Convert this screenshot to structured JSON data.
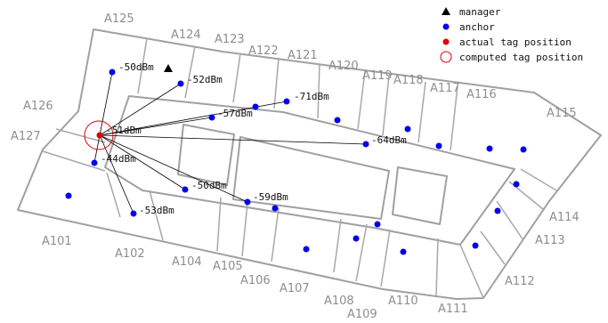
{
  "colors": {
    "anchor": "#0000ee",
    "tag": "#dd0000",
    "computed": "#dd0000",
    "manager": "#000000",
    "wall": "#a0a0a0",
    "room_label": "#8e8e8e"
  },
  "legend": {
    "manager": "manager",
    "anchor": "anchor",
    "actual": "actual tag position",
    "computed": "computed tag position"
  },
  "rooms": {
    "A101": "A101",
    "A102": "A102",
    "A104": "A104",
    "A105": "A105",
    "A106": "A106",
    "A107": "A107",
    "A108": "A108",
    "A109": "A109",
    "A110": "A110",
    "A111": "A111",
    "A112": "A112",
    "A113": "A113",
    "A114": "A114",
    "A115": "A115",
    "A116": "A116",
    "A117": "A117",
    "A118": "A118",
    "A119": "A119",
    "A120": "A120",
    "A121": "A121",
    "A122": "A122",
    "A123": "A123",
    "A124": "A124",
    "A125": "A125",
    "A126": "A126",
    "A127": "A127"
  },
  "rssi": {
    "r1": "-50dBm",
    "r2": "-52dBm",
    "r3": "-71dBm",
    "r4": "-57dBm",
    "r5": "-64dBm",
    "r6": "-51dBm",
    "r7": "-44dBm",
    "r8": "-50dBm",
    "r9": "-59dBm",
    "r10": "-53dBm"
  }
}
